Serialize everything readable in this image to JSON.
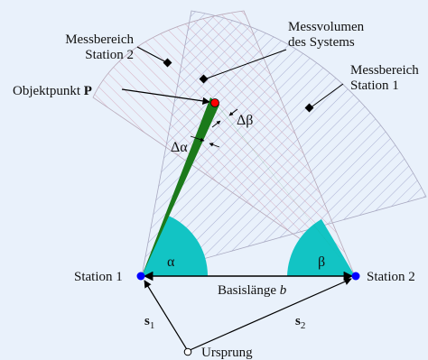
{
  "labels": {
    "measurement_range_station2": [
      "Messbereich",
      "Station 2"
    ],
    "system_measurement_volume": [
      "Messvolumen",
      "des Systems"
    ],
    "measurement_range_station1": [
      "Messbereich",
      "Station 1"
    ],
    "object_point": {
      "text": "Objektpunkt ",
      "bold": "P"
    },
    "delta_beta": "Δβ",
    "delta_alpha": "Δα",
    "alpha": "α",
    "beta": "β",
    "station1": "Station 1",
    "station2": "Station 2",
    "baseline": {
      "text": "Basislänge ",
      "italic": "b"
    },
    "s1": {
      "main": "s",
      "sub": "1"
    },
    "s2": {
      "main": "s",
      "sub": "2"
    },
    "origin": "Ursprung"
  },
  "colors": {
    "background": "#e9f1fb",
    "station_fill": "#0000ff",
    "object_fill": "#ff0000",
    "ray_green": "#1b7a1b",
    "angle_fill": "#12c4c4",
    "hatch_station1": "#9aa0c8",
    "hatch_station2": "#d4a0b4"
  }
}
